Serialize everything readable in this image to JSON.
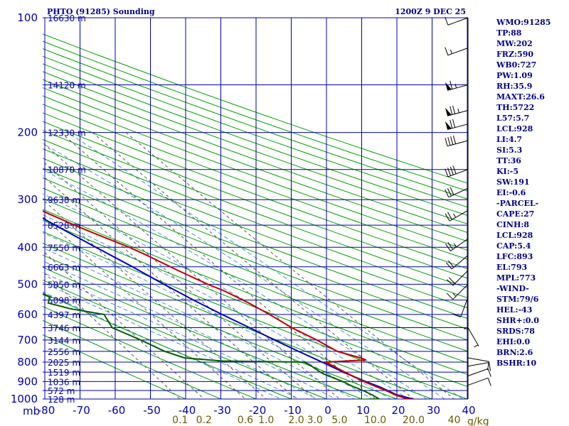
{
  "header": {
    "title": "PHTO (91285) Sounding",
    "time": "1200Z  9 DEC 25"
  },
  "indices": [
    "WMO:91285",
    "TP:88",
    "MW:202",
    "FRZ:590",
    "WB0:727",
    "PW:1.09",
    "RH:35.9",
    "MAXT:26.6",
    "TH:5722",
    "L57:5.7",
    "LCL:928",
    "LI:4.7",
    "SI:5.3",
    "TT:36",
    "KI:-5",
    "SW:191",
    "EI:-0.6",
    "-PARCEL-",
    "CAPE:27",
    "CINH:8",
    "LCL:928",
    "CAP:5.4",
    "LFC:893",
    "EL:793",
    "MPL:773",
    "-WIND-",
    "STM:79/6",
    "HEL:-43",
    "SHR+:0.0",
    "SRDS:78",
    "EHI:0.0",
    "BRN:2.6",
    "BSHR:10"
  ],
  "colors": {
    "isobar": "#0000b0",
    "isotherm": "#0000b0",
    "dry_adiabat": "#00a000",
    "moist_adiabat": "#4a90e2",
    "mixing_ratio": "#555555",
    "temperature": "#c00000",
    "dewpoint": "#006000",
    "parcel": "#0000c0"
  },
  "chart_data": {
    "type": "skew-t",
    "title": "PHTO (91285) Sounding",
    "xlabel": "",
    "ylabel": "mb",
    "pressure_range": [
      100,
      1000
    ],
    "temperature_range": [
      -80,
      40
    ],
    "pressure_ticks": [
      "100",
      "200",
      "300",
      "400",
      "500",
      "600",
      "700",
      "800",
      "900",
      "1000"
    ],
    "pressure_tick_values": [
      100,
      200,
      300,
      400,
      500,
      600,
      700,
      800,
      900,
      1000
    ],
    "axis_unit_label": "mb",
    "temperature_ticks": [
      "-80",
      "-70",
      "-60",
      "-50",
      "-40",
      "-30",
      "-20",
      "-10",
      "0",
      "10",
      "20",
      "30",
      "40"
    ],
    "temperature_tick_values": [
      -80,
      -70,
      -60,
      -50,
      -40,
      -30,
      -20,
      -10,
      0,
      10,
      20,
      30,
      40
    ],
    "mixing_ratio_ticks": [
      "0.1",
      "0.2",
      "0.6",
      "1.0",
      "2.0",
      "3.0",
      "5.0",
      "10.0",
      "20.0",
      "40"
    ],
    "mixing_ratio_values": [
      0.1,
      0.2,
      0.6,
      1.0,
      2.0,
      3.0,
      5.0,
      10.0,
      20.0,
      40.0
    ],
    "mixing_ratio_unit": "g/kg",
    "height_labels": [
      {
        "p": 100,
        "text": "16630 m"
      },
      {
        "p": 150,
        "text": "14120 m"
      },
      {
        "p": 200,
        "text": "12330 m"
      },
      {
        "p": 250,
        "text": "10870 m"
      },
      {
        "p": 300,
        "text": "9638 m"
      },
      {
        "p": 350,
        "text": "8528 m"
      },
      {
        "p": 400,
        "text": "7550 m"
      },
      {
        "p": 450,
        "text": "6663 m"
      },
      {
        "p": 500,
        "text": "5850 m"
      },
      {
        "p": 550,
        "text": "5098 m"
      },
      {
        "p": 600,
        "text": "4397 m"
      },
      {
        "p": 650,
        "text": "3746 m"
      },
      {
        "p": 700,
        "text": "3144 m"
      },
      {
        "p": 750,
        "text": "2556 m"
      },
      {
        "p": 800,
        "text": "2025 m"
      },
      {
        "p": 850,
        "text": "1519 m"
      },
      {
        "p": 900,
        "text": "1036 m"
      },
      {
        "p": 950,
        "text": "572 m"
      },
      {
        "p": 1000,
        "text": "128 m"
      }
    ],
    "temperature": [
      [
        1003,
        25.0
      ],
      [
        1000,
        23.0
      ],
      [
        975,
        20.5
      ],
      [
        950,
        19.0
      ],
      [
        925,
        17.0
      ],
      [
        900,
        15.0
      ],
      [
        875,
        13.5
      ],
      [
        850,
        12.0
      ],
      [
        825,
        10.5
      ],
      [
        800,
        9.0
      ],
      [
        790,
        21.0
      ],
      [
        780,
        20.0
      ],
      [
        750,
        15.0
      ],
      [
        700,
        12.0
      ],
      [
        650,
        8.0
      ],
      [
        600,
        5.0
      ],
      [
        560,
        2.0
      ],
      [
        520,
        -2.0
      ],
      [
        500,
        -5.0
      ],
      [
        460,
        -10.0
      ],
      [
        420,
        -15.0
      ],
      [
        400,
        -18.0
      ],
      [
        370,
        -24.0
      ],
      [
        350,
        -28.0
      ],
      [
        300,
        -38.0
      ],
      [
        250,
        -48.0
      ],
      [
        200,
        -58.0
      ],
      [
        170,
        -63.0
      ],
      [
        150,
        -66.0
      ],
      [
        120,
        -72.0
      ],
      [
        100,
        -75.0
      ]
    ],
    "dewpoint": [
      [
        1003,
        8.0
      ],
      [
        1000,
        15.0
      ],
      [
        975,
        14.0
      ],
      [
        950,
        12.5
      ],
      [
        925,
        10.5
      ],
      [
        900,
        9.0
      ],
      [
        860,
        5.5
      ],
      [
        850,
        5.0
      ],
      [
        820,
        4.0
      ],
      [
        800,
        3.0
      ],
      [
        795,
        -20.0
      ],
      [
        780,
        -30.0
      ],
      [
        750,
        -34.0
      ],
      [
        700,
        -38.0
      ],
      [
        650,
        -43.0
      ],
      [
        600,
        -42.0
      ],
      [
        580,
        -50.0
      ],
      [
        560,
        -55.0
      ],
      [
        540,
        -53.0
      ],
      [
        520,
        -56.0
      ],
      [
        500,
        -56.0
      ],
      [
        470,
        -59.0
      ],
      [
        450,
        -58.0
      ],
      [
        420,
        -55.0
      ],
      [
        400,
        -47.0
      ],
      [
        380,
        -52.0
      ],
      [
        350,
        -63.0
      ],
      [
        320,
        -71.0
      ],
      [
        300,
        -76.0
      ],
      [
        270,
        -80.0
      ],
      [
        250,
        -82.0
      ],
      [
        230,
        -82.0
      ],
      [
        220,
        -84.0
      ],
      [
        205,
        -80.0
      ],
      [
        195,
        -88.0
      ],
      [
        180,
        -92.0
      ],
      [
        160,
        -100.0
      ]
    ],
    "parcel": [
      [
        1003,
        25.0
      ],
      [
        975,
        21.0
      ],
      [
        950,
        19.5
      ],
      [
        928,
        18.0
      ],
      [
        900,
        15.5
      ],
      [
        850,
        11.5
      ],
      [
        800,
        8.0
      ],
      [
        750,
        4.0
      ],
      [
        700,
        0.0
      ],
      [
        650,
        -4.0
      ],
      [
        600,
        -8.5
      ],
      [
        550,
        -13.0
      ],
      [
        500,
        -17.5
      ],
      [
        450,
        -22.0
      ],
      [
        400,
        -27.5
      ],
      [
        350,
        -33.5
      ],
      [
        300,
        -40.0
      ],
      [
        250,
        -47.0
      ],
      [
        200,
        -55.0
      ],
      [
        170,
        -59.0
      ],
      [
        150,
        -62.0
      ],
      [
        120,
        -68.0
      ]
    ],
    "wind_barbs": [
      {
        "p": 100,
        "dir": 250,
        "spd": 10
      },
      {
        "p": 120,
        "dir": 250,
        "spd": 15
      },
      {
        "p": 150,
        "dir": 255,
        "spd": 65
      },
      {
        "p": 175,
        "dir": 255,
        "spd": 75
      },
      {
        "p": 190,
        "dir": 255,
        "spd": 70
      },
      {
        "p": 210,
        "dir": 255,
        "spd": 40
      },
      {
        "p": 250,
        "dir": 250,
        "spd": 40
      },
      {
        "p": 280,
        "dir": 245,
        "spd": 30
      },
      {
        "p": 320,
        "dir": 240,
        "spd": 25
      },
      {
        "p": 380,
        "dir": 235,
        "spd": 25
      },
      {
        "p": 420,
        "dir": 230,
        "spd": 20
      },
      {
        "p": 460,
        "dir": 225,
        "spd": 20
      },
      {
        "p": 500,
        "dir": 225,
        "spd": 15
      },
      {
        "p": 540,
        "dir": 200,
        "spd": 10
      },
      {
        "p": 580,
        "dir": 180,
        "spd": 5
      },
      {
        "p": 650,
        "dir": 150,
        "spd": 5
      },
      {
        "p": 780,
        "dir": 100,
        "spd": 10
      },
      {
        "p": 820,
        "dir": 80,
        "spd": 10
      },
      {
        "p": 870,
        "dir": 70,
        "spd": 10
      },
      {
        "p": 920,
        "dir": 70,
        "spd": 10
      }
    ]
  }
}
